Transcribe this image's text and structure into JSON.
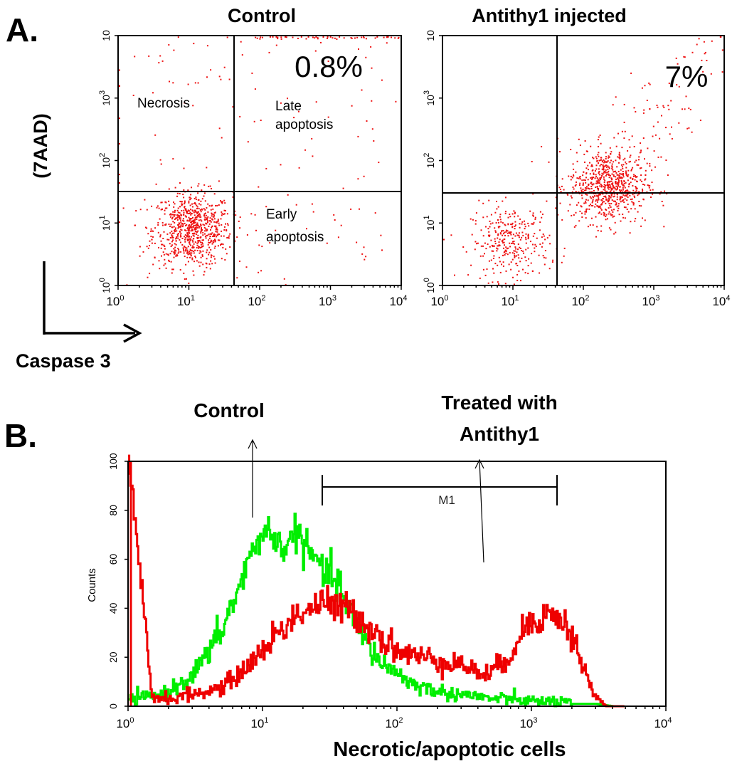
{
  "panel_a_label": "A.",
  "panel_b_label": "B.",
  "panel_a": {
    "y_axis_label": "(7AAD)",
    "x_axis_label": "Caspase 3"
  },
  "colors": {
    "dots": "#ee1111",
    "control_hist": "#00ee00",
    "treated_hist": "#ee0000"
  },
  "chart_data": [
    {
      "type": "scatter",
      "title": "Control",
      "x_scale": "log",
      "y_scale": "log",
      "xlim": [
        1,
        10000
      ],
      "ylim": [
        1,
        10000
      ],
      "x_ticks": [
        "10^0",
        "10^1",
        "10^2",
        "10^3",
        "10^4"
      ],
      "y_ticks": [
        "10^0",
        "10^1",
        "10^2",
        "10^3",
        "10"
      ],
      "quadrant_gate": {
        "x": 45,
        "y": 32
      },
      "annotations": [
        "0.8%",
        "Necrosis",
        "Late apoptosis",
        "Early apoptosis"
      ],
      "clusters": [
        {
          "label": "main population",
          "center_x": 11,
          "center_y": 8,
          "n": 750
        },
        {
          "label": "scattered",
          "x_range": [
            1,
            10000
          ],
          "y_range": [
            1,
            10000
          ],
          "n": 150
        },
        {
          "label": "top edge",
          "y": 9500,
          "x_range": [
            80,
            10000
          ],
          "n": 50
        }
      ]
    },
    {
      "type": "scatter",
      "title": "Antithy1 injected",
      "x_scale": "log",
      "y_scale": "log",
      "xlim": [
        1,
        10000
      ],
      "ylim": [
        1,
        10000
      ],
      "x_ticks": [
        "10^0",
        "10^1",
        "10^2",
        "10^3",
        "10^4"
      ],
      "y_ticks": [
        "10^0",
        "10^1",
        "10^2",
        "10^3",
        "10"
      ],
      "quadrant_gate": {
        "x": 45,
        "y": 32
      },
      "annotations": [
        "7%"
      ],
      "clusters": [
        {
          "label": "low population",
          "center_x": 9,
          "center_y": 5,
          "n": 320
        },
        {
          "label": "high population",
          "center_x": 220,
          "center_y": 40,
          "n": 700
        },
        {
          "label": "diagonal tail",
          "x_range": [
            100,
            10000
          ],
          "y_range": [
            30,
            8000
          ],
          "n": 130
        }
      ]
    },
    {
      "type": "line",
      "xlabel": "Necrotic/apoptotic cells",
      "ylabel": "Counts",
      "x_scale": "log",
      "xlim": [
        1,
        10000
      ],
      "ylim": [
        0,
        100
      ],
      "x_ticks": [
        "10^0",
        "10^1",
        "10^2",
        "10^3",
        "10^4"
      ],
      "y_ticks": [
        0,
        20,
        40,
        60,
        80,
        100
      ],
      "marker": {
        "label": "M1",
        "x_range": [
          28,
          1600
        ],
        "y": 82
      },
      "annotations": [
        {
          "text": "Control",
          "arrow_x": 8.5
        },
        {
          "text": "Treated with Antithy1",
          "arrow_x": 450
        }
      ],
      "series": [
        {
          "color": "#00ee00",
          "x": [
            1,
            1.5,
            2,
            3,
            4,
            5,
            6,
            7,
            8,
            9,
            10,
            11,
            12,
            14,
            16,
            18,
            20,
            22,
            25,
            28,
            32,
            36,
            40,
            45,
            50,
            55,
            60,
            70,
            80,
            90,
            100,
            120,
            150,
            200,
            250,
            300,
            400,
            500,
            700,
            1000,
            1500,
            2000,
            3000,
            4000,
            5000
          ],
          "y": [
            3,
            4,
            6,
            13,
            22,
            32,
            42,
            52,
            60,
            67,
            72,
            71,
            68,
            65,
            68,
            72,
            66,
            62,
            60,
            55,
            53,
            50,
            45,
            38,
            33,
            28,
            25,
            20,
            17,
            15,
            14,
            10,
            8,
            6,
            5,
            5,
            4,
            3,
            3,
            2,
            2,
            1,
            1,
            0,
            0
          ]
        },
        {
          "color": "#ee0000",
          "x": [
            1,
            1.5,
            2,
            3,
            4,
            5,
            6,
            7,
            8,
            9,
            10,
            12,
            14,
            16,
            18,
            20,
            22,
            25,
            28,
            32,
            36,
            40,
            45,
            50,
            55,
            60,
            70,
            80,
            90,
            100,
            120,
            150,
            200,
            250,
            300,
            350,
            400,
            450,
            500,
            600,
            700,
            800,
            900,
            1000,
            1200,
            1400,
            1600,
            1800,
            2000,
            2400,
            2800,
            3200,
            3600,
            4000,
            5000
          ],
          "y": [
            100,
            4,
            3,
            5,
            6,
            8,
            11,
            14,
            18,
            20,
            23,
            28,
            32,
            35,
            37,
            39,
            40,
            41,
            42,
            41,
            40,
            40,
            39,
            38,
            35,
            33,
            30,
            27,
            25,
            23,
            21,
            20,
            19,
            18,
            17,
            15,
            14,
            13,
            14,
            17,
            22,
            28,
            32,
            35,
            37,
            37,
            36,
            33,
            28,
            17,
            6,
            2,
            0,
            0,
            0
          ]
        }
      ]
    }
  ]
}
